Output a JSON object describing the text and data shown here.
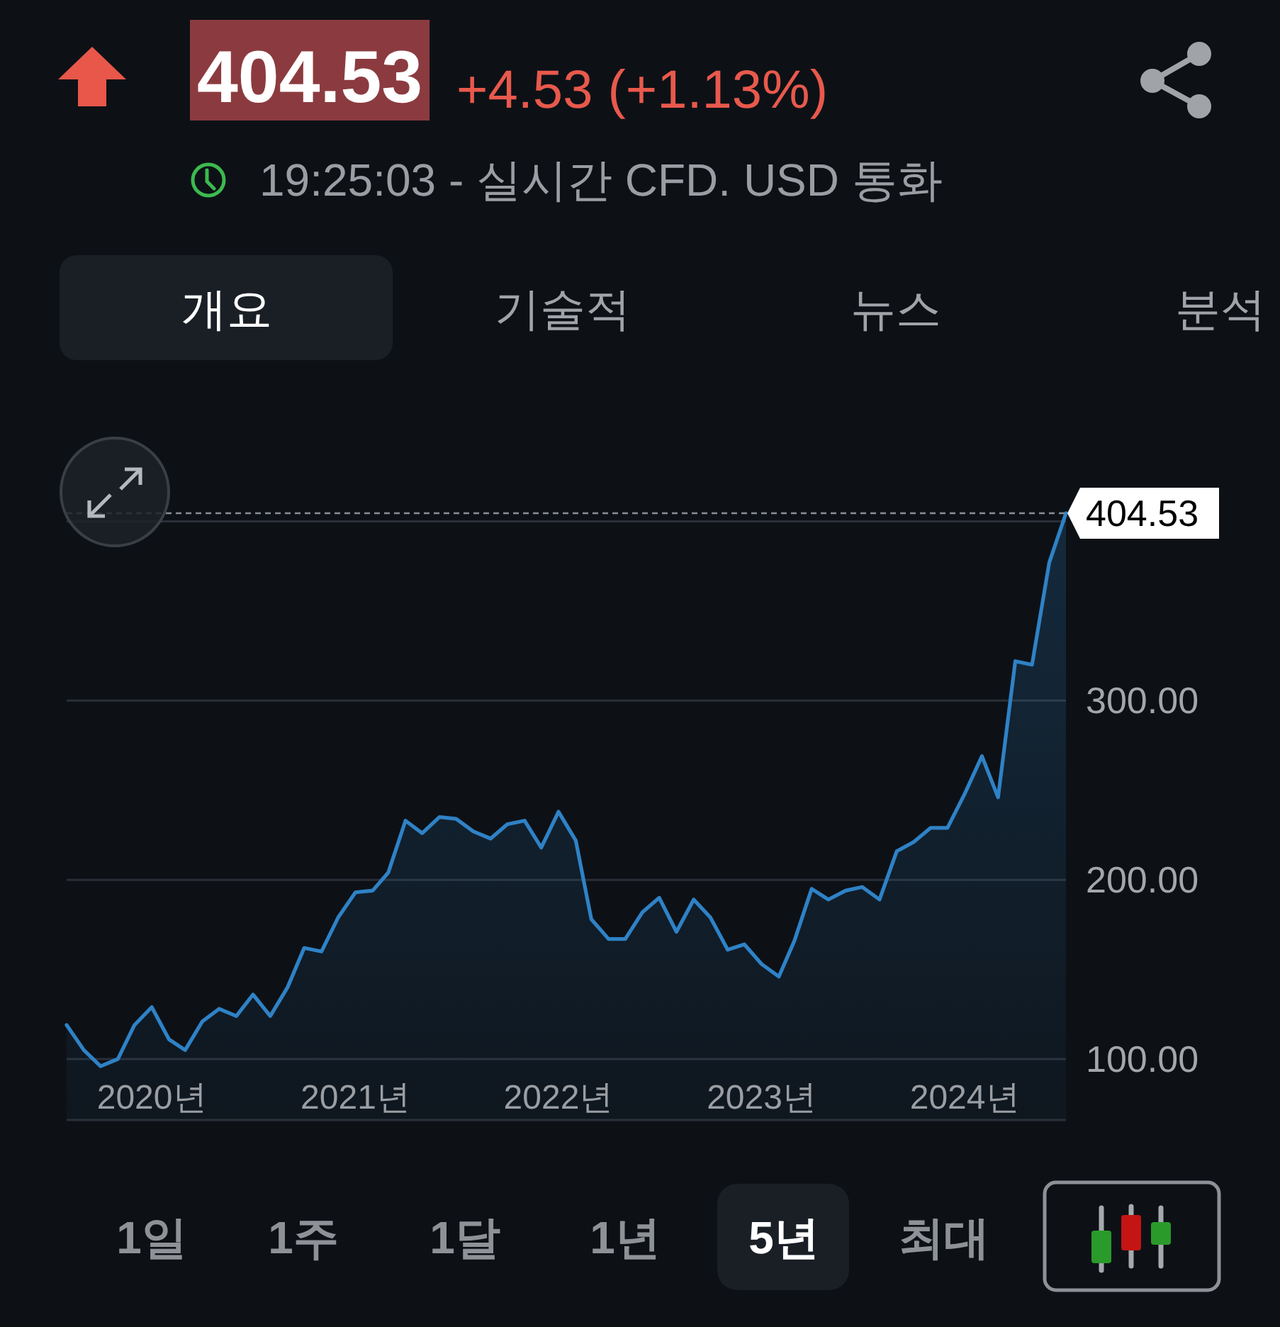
{
  "chart_data": {
    "type": "area",
    "title": "404.53",
    "subtitle": "+4.53 (+1.13%)",
    "annotations": [
      "19:25:03 - 실시간 CFD. USD 통화",
      "개요",
      "기술적",
      "뉴스",
      "분석",
      "1일",
      "1주",
      "1달",
      "1년",
      "5년",
      "최대"
    ],
    "x": [
      "2019-08",
      "2019-09",
      "2019-10",
      "2019-11",
      "2019-12",
      "2020-01",
      "2020-02",
      "2020-03",
      "2020-04",
      "2020-05",
      "2020-06",
      "2020-07",
      "2020-08",
      "2020-09",
      "2020-10",
      "2020-11",
      "2020-12",
      "2021-01",
      "2021-02",
      "2021-03",
      "2021-04",
      "2021-05",
      "2021-06",
      "2021-07",
      "2021-08",
      "2021-09",
      "2021-10",
      "2021-11",
      "2021-12",
      "2022-01",
      "2022-02",
      "2022-03",
      "2022-04",
      "2022-05",
      "2022-06",
      "2022-07",
      "2022-08",
      "2022-09",
      "2022-10",
      "2022-11",
      "2022-12",
      "2023-01",
      "2023-02",
      "2023-03",
      "2023-04",
      "2023-05",
      "2023-06",
      "2023-07",
      "2023-08",
      "2023-09",
      "2023-10",
      "2023-11",
      "2023-12",
      "2024-01",
      "2024-02",
      "2024-03",
      "2024-04",
      "2024-05",
      "2024-06",
      "2024-07"
    ],
    "series": [
      {
        "color": "#2f82c6",
        "values": [
          119,
          105,
          96,
          100,
          119,
          129,
          111,
          105,
          121,
          128,
          124,
          136,
          124,
          140,
          162,
          160,
          179,
          193,
          194,
          204,
          233,
          226,
          235,
          234,
          227,
          223,
          231,
          233,
          218,
          238,
          222,
          178,
          167,
          167,
          182,
          190,
          171,
          189,
          179,
          161,
          164,
          153,
          146,
          166,
          195,
          189,
          194,
          196,
          189,
          216,
          221,
          229,
          229,
          248,
          269,
          246,
          322,
          320,
          377,
          404.53
        ]
      }
    ],
    "xlim": [
      "2019-08",
      "2024-07"
    ],
    "ylim": [
      66,
      404.53
    ],
    "xticks": [
      {
        "value": "2020-01",
        "label": "2020년"
      },
      {
        "value": "2021-01",
        "label": "2021년"
      },
      {
        "value": "2022-01",
        "label": "2022년"
      },
      {
        "value": "2023-01",
        "label": "2023년"
      },
      {
        "value": "2024-01",
        "label": "2024년"
      }
    ],
    "yticks": [
      {
        "value": 100,
        "label": "100.00"
      },
      {
        "value": 200,
        "label": "200.00"
      },
      {
        "value": 300,
        "label": "300.00"
      },
      {
        "value": 400,
        "label": null
      }
    ],
    "grid": "y",
    "ref_lines": [
      {
        "axis": "y",
        "value": 404.53,
        "label": "404.53",
        "line_style": "dashed",
        "color": "#8a8f96"
      }
    ]
  }
}
